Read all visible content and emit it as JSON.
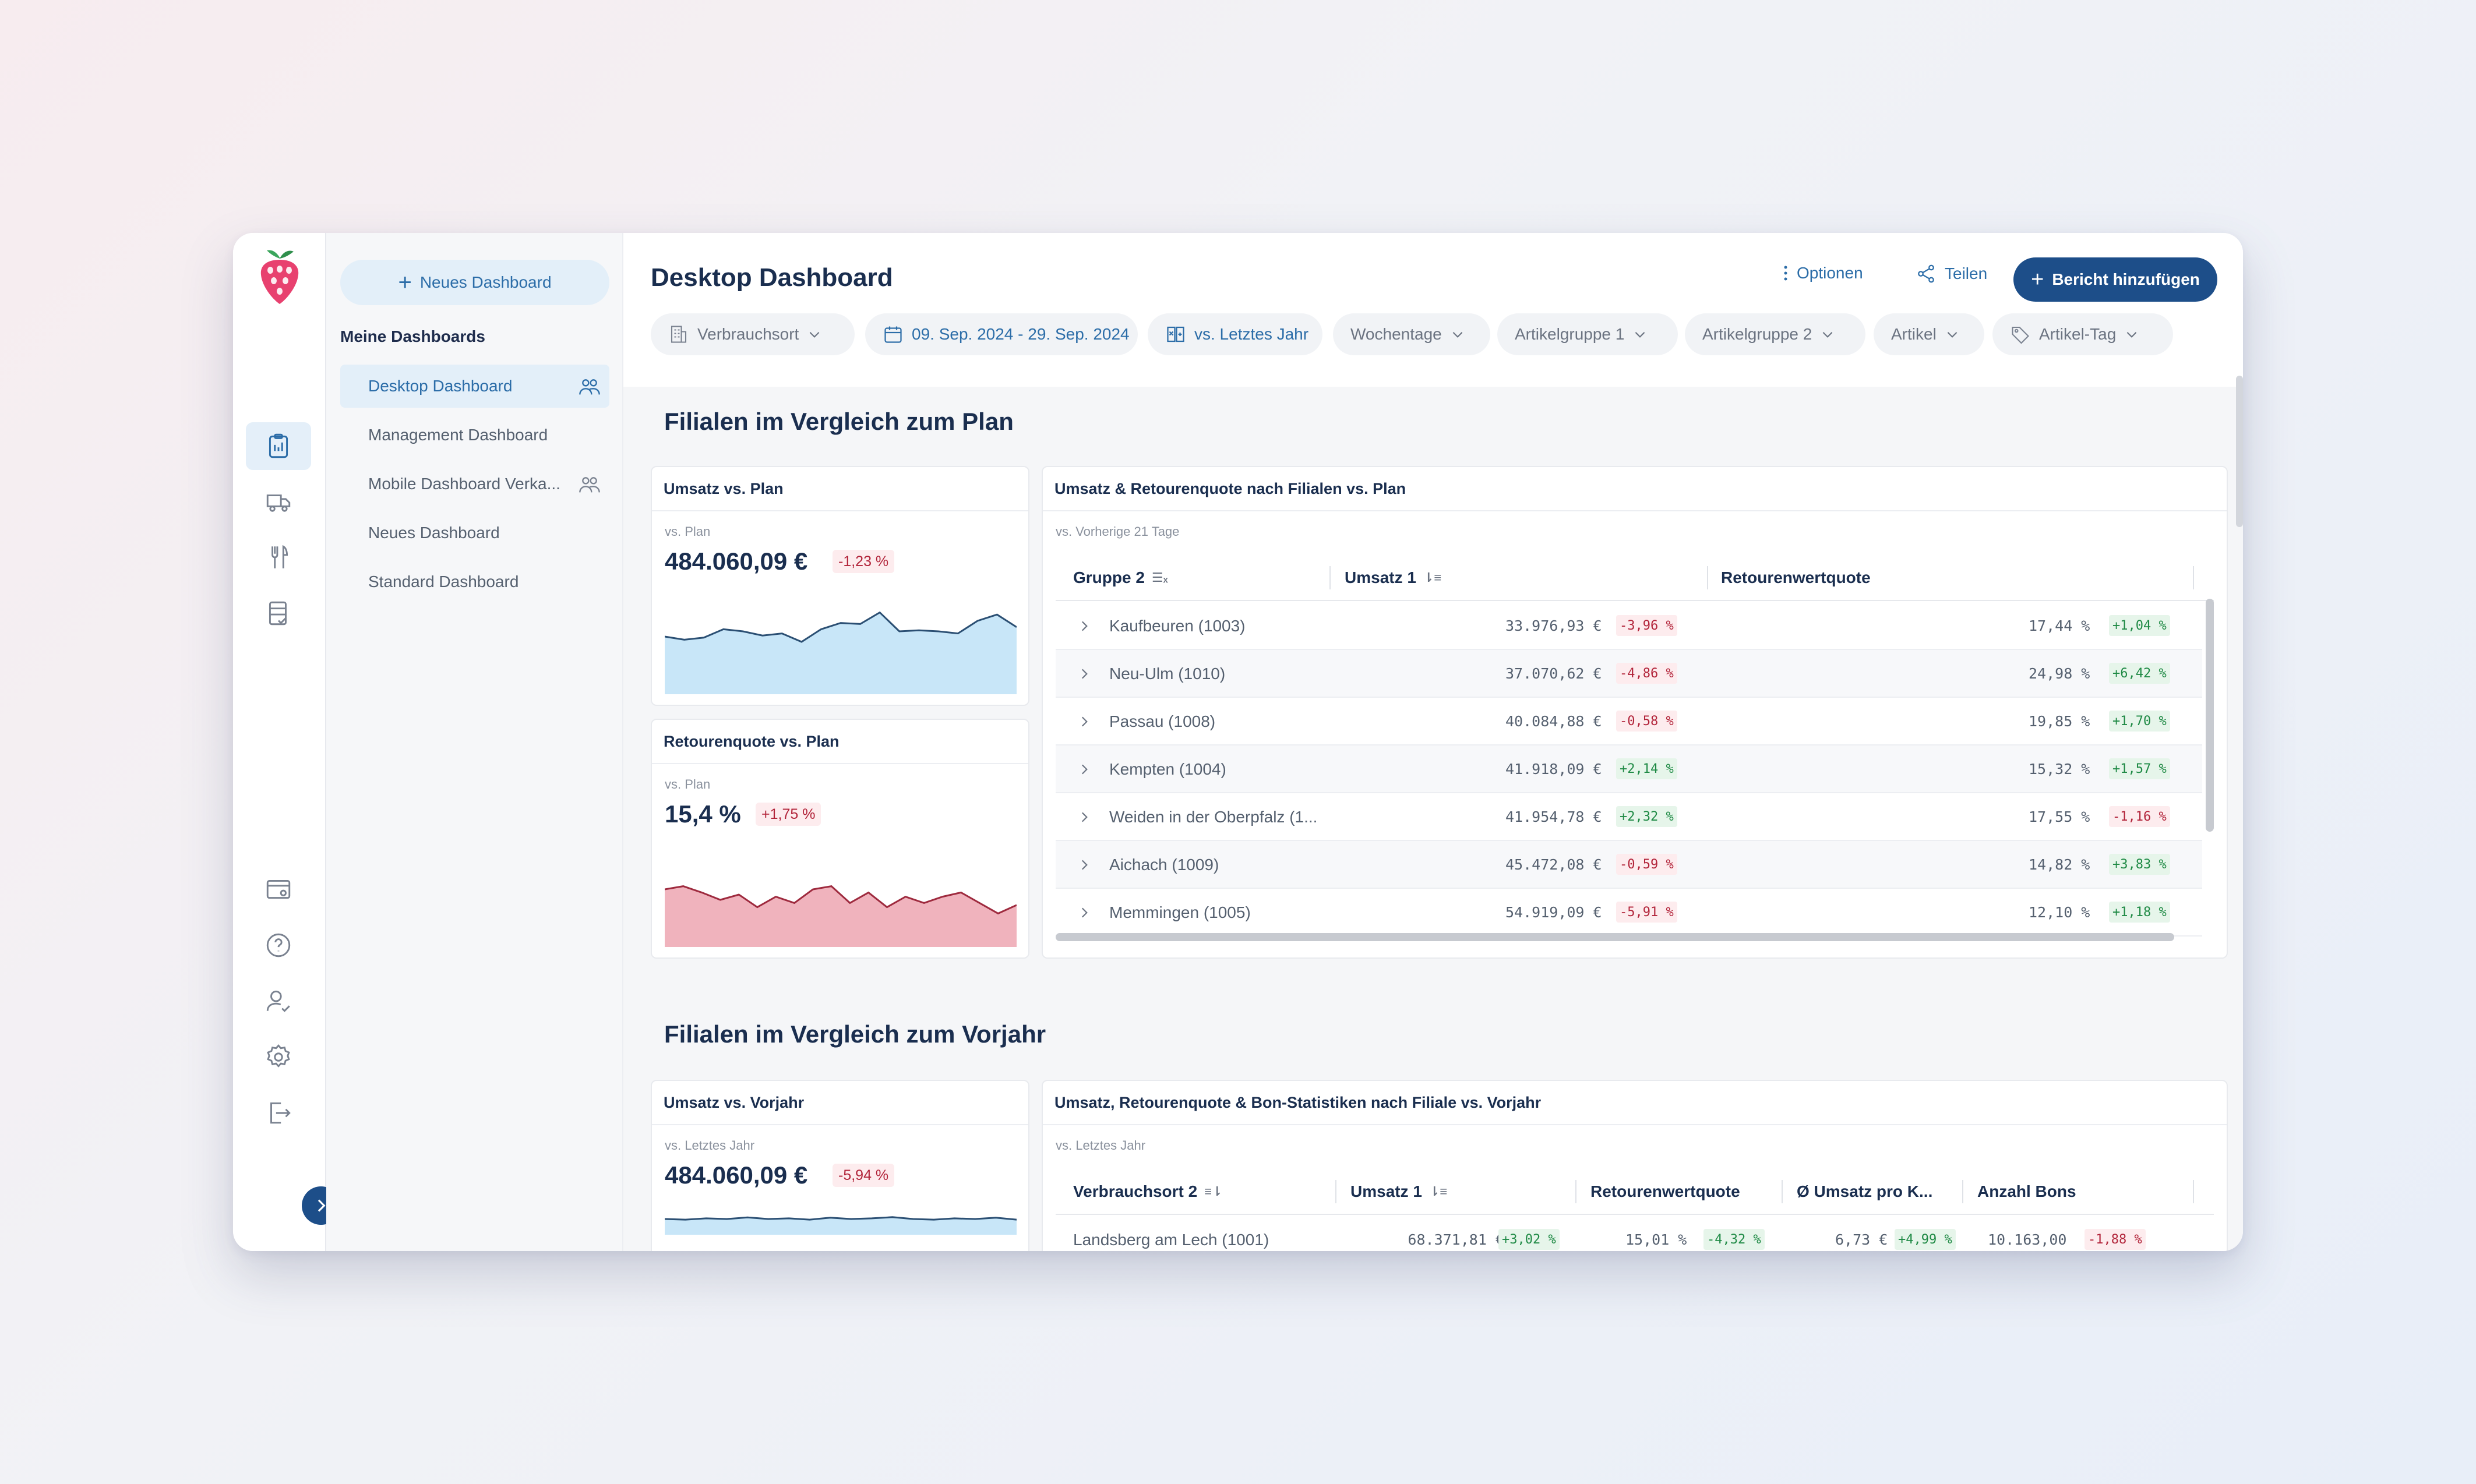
{
  "app": {
    "title": "Desktop Dashboard"
  },
  "rail": {
    "top_icons": [
      "clipboard-icon",
      "truck-icon",
      "cutlery-icon",
      "checklist-icon"
    ],
    "bottom_icons": [
      "card-settings-icon",
      "help-icon",
      "user-check-icon",
      "gear-icon",
      "logout-icon"
    ]
  },
  "sidebar": {
    "new_dashboard": "Neues Dashboard",
    "section": "Meine Dashboards",
    "items": [
      {
        "label": "Desktop Dashboard",
        "shared": true,
        "active": true
      },
      {
        "label": "Management Dashboard",
        "shared": false,
        "active": false
      },
      {
        "label": "Mobile Dashboard Verka...",
        "shared": true,
        "active": false
      },
      {
        "label": "Neues Dashboard",
        "shared": false,
        "active": false
      },
      {
        "label": "Standard Dashboard",
        "shared": false,
        "active": false
      }
    ]
  },
  "toolbar": {
    "options": "Optionen",
    "share": "Teilen",
    "add_report": "Bericht hinzufügen"
  },
  "filters": [
    {
      "label": "Verbrauchsort",
      "icon": "building-icon"
    },
    {
      "label": "09. Sep. 2024 - 29. Sep. 2024",
      "icon": "calendar-icon"
    },
    {
      "label": "vs. Letztes Jahr",
      "icon": "compare-icon"
    },
    {
      "label": "Wochentage"
    },
    {
      "label": "Artikelgruppe 1"
    },
    {
      "label": "Artikelgruppe 2"
    },
    {
      "label": "Artikel"
    },
    {
      "label": "Artikel-Tag",
      "icon": "tag-icon"
    }
  ],
  "section1": {
    "title": "Filialen im Vergleich zum Plan",
    "kpi1": {
      "title": "Umsatz vs. Plan",
      "sub": "vs. Plan",
      "value": "484.060,09 €",
      "delta": "-1,23 %",
      "spark": [
        0.55,
        0.52,
        0.54,
        0.62,
        0.6,
        0.56,
        0.58,
        0.5,
        0.62,
        0.68,
        0.67,
        0.78,
        0.6,
        0.61,
        0.6,
        0.58,
        0.7,
        0.76,
        0.64
      ]
    },
    "kpi2": {
      "title": "Retourenquote vs. Plan",
      "sub": "vs. Plan",
      "value": "15,4 %",
      "delta": "+1,75 %",
      "spark": [
        0.55,
        0.58,
        0.52,
        0.45,
        0.5,
        0.38,
        0.48,
        0.42,
        0.55,
        0.58,
        0.42,
        0.52,
        0.38,
        0.48,
        0.42,
        0.48,
        0.52,
        0.42,
        0.32,
        0.4
      ]
    },
    "table": {
      "title": "Umsatz & Retourenquote nach Filialen vs. Plan",
      "sub": "vs. Vorherige 21 Tage",
      "columns": [
        "Gruppe  2",
        "Umsatz  1",
        "Retourenwertquote"
      ],
      "rows": [
        {
          "name": "Kaufbeuren (1003)",
          "umsatz": "33.976,93 €",
          "ud": "-3,96 %",
          "quote": "17,44 %",
          "qd": "+1,04 %"
        },
        {
          "name": "Neu-Ulm (1010)",
          "umsatz": "37.070,62 €",
          "ud": "-4,86 %",
          "quote": "24,98 %",
          "qd": "+6,42 %"
        },
        {
          "name": "Passau (1008)",
          "umsatz": "40.084,88 €",
          "ud": "-0,58 %",
          "quote": "19,85 %",
          "qd": "+1,70 %"
        },
        {
          "name": "Kempten (1004)",
          "umsatz": "41.918,09 €",
          "ud": "+2,14 %",
          "quote": "15,32 %",
          "qd": "+1,57 %"
        },
        {
          "name": "Weiden in der Oberpfalz (1...",
          "umsatz": "41.954,78 €",
          "ud": "+2,32 %",
          "quote": "17,55 %",
          "qd": "-1,16 %"
        },
        {
          "name": "Aichach (1009)",
          "umsatz": "45.472,08 €",
          "ud": "-0,59 %",
          "quote": "14,82 %",
          "qd": "+3,83 %"
        },
        {
          "name": "Memmingen (1005)",
          "umsatz": "54.919,09 €",
          "ud": "-5,91 %",
          "quote": "12,10 %",
          "qd": "+1,18 %"
        }
      ]
    }
  },
  "section2": {
    "title": "Filialen im Vergleich zum Vorjahr",
    "kpi1": {
      "title": "Umsatz vs. Vorjahr",
      "sub": "vs. Letztes Jahr",
      "value": "484.060,09 €",
      "delta": "-5,94 %",
      "spark": [
        0.5,
        0.48,
        0.52,
        0.5,
        0.55,
        0.5,
        0.52,
        0.48,
        0.54,
        0.5,
        0.52,
        0.56,
        0.5,
        0.48,
        0.52,
        0.5,
        0.54,
        0.48
      ]
    },
    "table": {
      "title": "Umsatz, Retourenquote & Bon-Statistiken nach Filiale vs. Vorjahr",
      "sub": "vs. Letztes Jahr",
      "columns": [
        "Verbrauchsort  2",
        "Umsatz  1",
        "Retourenwertquote",
        "Ø Umsatz pro K...",
        "Anzahl Bons"
      ],
      "rows": [
        {
          "name": "Landsberg am Lech (1001)",
          "umsatz": "68.371,81 €",
          "ud": "+3,02 %",
          "quote": "15,01 %",
          "qd": "-4,32 %",
          "avg": "6,73 €",
          "ad": "+4,99 %",
          "bons": "10.163,00",
          "bd": "-1,88 %"
        }
      ]
    }
  },
  "colors": {
    "primary": "#1d4e89",
    "accent": "#2c6da8",
    "blue_area": "#c8e6f8",
    "red_area": "#f0b3bd",
    "red_line": "#9e2a3e",
    "blue_line": "#2b4f73"
  }
}
